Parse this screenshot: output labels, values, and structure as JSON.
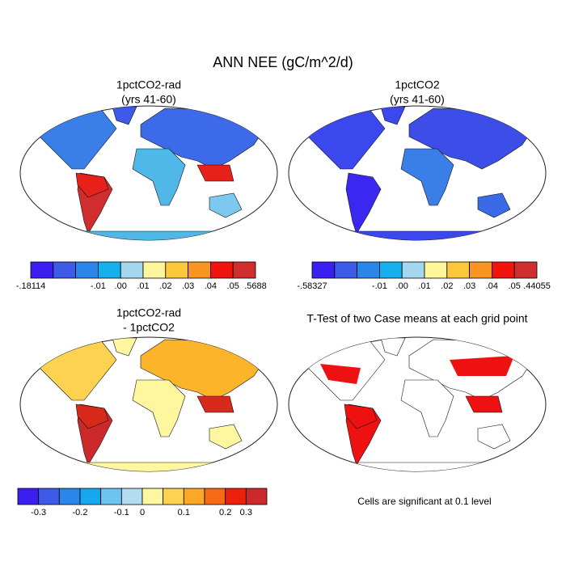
{
  "title": "ANN NEE (gC/m^2/d)",
  "panels": [
    {
      "title": [
        "1pctCO2-rad",
        "(yrs 41-60)"
      ]
    },
    {
      "title": [
        "1pctCO2",
        "(yrs 41-60)"
      ]
    },
    {
      "title": [
        "1pctCO2-rad",
        "- 1pctCO2"
      ]
    },
    {
      "title": [
        "T-Test of two Case means at each grid point"
      ]
    }
  ],
  "colorbars": [
    {
      "colors": [
        "#3b1ff2",
        "#3d5be8",
        "#2a86e8",
        "#16b0ee",
        "#a4d6ee",
        "#fff59a",
        "#fcc83a",
        "#f99422",
        "#f2140c",
        "#d02e2e"
      ],
      "boundaries": [
        {
          "value": -0.18114,
          "label": "-.18114"
        },
        null,
        null,
        {
          "value": -0.01,
          "label": "-.01"
        },
        {
          "value": 0,
          "label": ".00"
        },
        {
          "value": 0.01,
          "label": ".01"
        },
        {
          "value": 0.02,
          "label": ".02"
        },
        {
          "value": 0.03,
          "label": ".03"
        },
        {
          "value": 0.04,
          "label": ".04"
        },
        {
          "value": 0.05,
          "label": ".05"
        },
        {
          "value": 0.5688,
          "label": ".5688"
        }
      ]
    },
    {
      "colors": [
        "#3b1ff2",
        "#3d5be8",
        "#2a86e8",
        "#16b0ee",
        "#a4d6ee",
        "#fff59a",
        "#fcc83a",
        "#f99422",
        "#f2140c",
        "#d02e2e"
      ],
      "boundaries": [
        {
          "value": -0.58327,
          "label": "-.58327"
        },
        null,
        null,
        {
          "value": -0.01,
          "label": "-.01"
        },
        {
          "value": 0,
          "label": ".00"
        },
        {
          "value": 0.01,
          "label": ".01"
        },
        {
          "value": 0.02,
          "label": ".02"
        },
        {
          "value": 0.03,
          "label": ".03"
        },
        {
          "value": 0.04,
          "label": ".04"
        },
        {
          "value": 0.05,
          "label": ".05"
        },
        {
          "value": 0.44055,
          "label": ".44055"
        }
      ]
    },
    {
      "colors": [
        "#3b1ff2",
        "#3d5be8",
        "#2a86e8",
        "#16a8ee",
        "#6ec4ee",
        "#b2dcf2",
        "#fff6a0",
        "#fcd250",
        "#faa828",
        "#f66a16",
        "#ee200c",
        "#cc2a2a"
      ],
      "boundaries": [
        null,
        -0.3,
        null,
        -0.2,
        null,
        -0.1,
        0,
        null,
        0.1,
        null,
        0.2,
        0.3,
        null
      ]
    }
  ],
  "note": "Cells are significant at 0.1 level"
}
